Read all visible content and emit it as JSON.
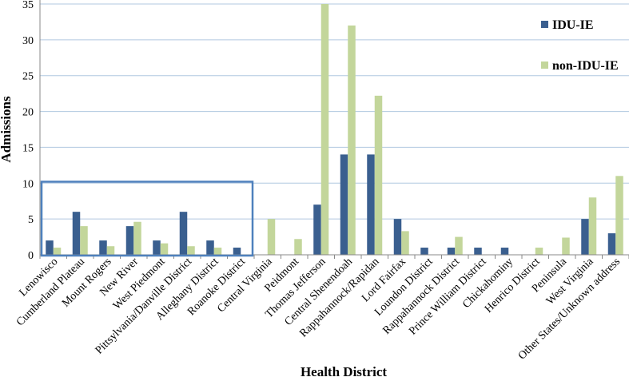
{
  "chart_data": {
    "type": "bar",
    "xlabel": "Health District",
    "ylabel": "Admissions",
    "ylim": [
      0,
      35
    ],
    "yticks": [
      0,
      5,
      10,
      15,
      20,
      25,
      30,
      35
    ],
    "grid": true,
    "legend_position": "top-right",
    "categories": [
      "Lenowisco",
      "Cumberland Plateau",
      "Mount Rogers",
      "New River",
      "West Piedmont",
      "Pittsylvania/Danville District",
      "Alleghany District",
      "Roanoke District",
      "Central Virginia",
      "Peidmont",
      "Thomas Jefferson",
      "Central Shenendoah",
      "Rappahannock/Rapidan",
      "Lord Fairfax",
      "Loundon District",
      "Rappahannock District",
      "Prince William District",
      "Chickahominy",
      "Henrico District",
      "Peninsula",
      "West Virginia",
      "Other States/Unknown address"
    ],
    "series": [
      {
        "name": "IDU-IE",
        "color": "#3a5f8f",
        "values": [
          2,
          6,
          2,
          4,
          2,
          6,
          2,
          1,
          0,
          0,
          7,
          14,
          14,
          5,
          1,
          1,
          1,
          1,
          0,
          0,
          5,
          3
        ]
      },
      {
        "name": "non-IDU-IE",
        "color": "#c3d69b",
        "values": [
          1,
          4,
          1.2,
          4.6,
          1.6,
          1.2,
          1,
          0,
          5,
          2.2,
          35,
          32,
          22.2,
          3.3,
          0,
          2.5,
          0,
          0,
          1,
          2.4,
          8,
          11
        ]
      }
    ],
    "annotation": {
      "type": "rectangle",
      "color": "#4f81bd",
      "categories_from": 0,
      "categories_to": 7,
      "y_top": 10.2
    }
  }
}
